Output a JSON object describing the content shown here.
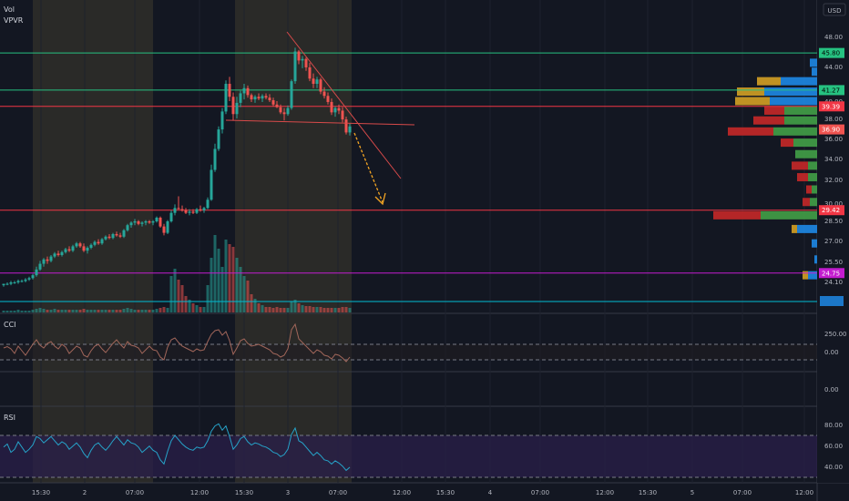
{
  "colors": {
    "background": "#131722",
    "session_shade": "#2a2a28",
    "up": "#26a69a",
    "down": "#ef5350",
    "grid": "#1e222d",
    "axis_text": "#b2b5be",
    "panel_border": "#363a45",
    "level_green": "#26c281",
    "level_red": "#f23645",
    "level_magenta": "#c31ccf",
    "level_cyan": "#00bcd4",
    "vp_up": "#43a047",
    "vp_down": "#c62828",
    "vp_poc_up": "#1e88e5",
    "vp_poc_down": "#d4a024",
    "cci_line": "#a1665a",
    "rsi_line": "#26a3c9",
    "rsi_band": "#2a1f4a",
    "arrow": "#f5a623",
    "trend_line": "#d84a4a"
  },
  "header": {
    "vol_label": "Vol",
    "vpvr_label": "VPVR",
    "currency": "USD"
  },
  "price_axis": {
    "ticks": [
      "48.00",
      "44.00",
      "40.00",
      "38.00",
      "36.00",
      "34.00",
      "32.00",
      "30.00",
      "28.50",
      "27.00",
      "25.50",
      "24.10"
    ],
    "badges": [
      {
        "label": "45.80",
        "value": 45.8,
        "color": "#26c281",
        "text": "#000000"
      },
      {
        "label": "41.27",
        "value": 41.27,
        "color": "#26c281",
        "text": "#000000"
      },
      {
        "label": "39.39",
        "value": 39.39,
        "color": "#f23645",
        "text": "#ffffff"
      },
      {
        "label": "36.90",
        "value": 36.9,
        "color": "#ef5350",
        "text": "#ffffff"
      },
      {
        "label": "29.42",
        "value": 29.42,
        "color": "#f23645",
        "text": "#ffffff"
      },
      {
        "label": "24.75",
        "value": 24.75,
        "color": "#c31ccf",
        "text": "#ffffff"
      }
    ]
  },
  "levels": [
    {
      "name": "resistance-45-80",
      "value": 45.8,
      "color": "#26c281"
    },
    {
      "name": "resistance-41-27",
      "value": 41.27,
      "color": "#26c281"
    },
    {
      "name": "level-39-39",
      "value": 39.39,
      "color": "#f23645"
    },
    {
      "name": "support-29-42",
      "value": 29.42,
      "color": "#f23645"
    },
    {
      "name": "support-24-75",
      "value": 24.75,
      "color": "#c31ccf"
    }
  ],
  "cci": {
    "label": "CCI",
    "ticks": [
      "250.00",
      "0.00"
    ],
    "lower_tick": "0.00"
  },
  "rsi": {
    "label": "RSI",
    "ticks": [
      "80.00",
      "60.00",
      "40.00"
    ]
  },
  "time_axis": {
    "labels": [
      "15:30",
      "2",
      "07:00",
      "12:00",
      "15:30",
      "3",
      "07:00",
      "12:00",
      "15:30",
      "4",
      "07:00",
      "12:00",
      "15:30",
      "5",
      "07:00",
      "12:00"
    ]
  },
  "chart_data": {
    "type": "candlestick",
    "currency": "USD",
    "price_range": [
      23.5,
      50
    ],
    "candles": [
      [
        23.9,
        24.0,
        23.8,
        24.0
      ],
      [
        24.0,
        24.1,
        23.9,
        24.0
      ],
      [
        24.0,
        24.2,
        23.9,
        24.1
      ],
      [
        24.1,
        24.2,
        24.0,
        24.1
      ],
      [
        24.1,
        24.3,
        24.0,
        24.2
      ],
      [
        24.2,
        24.3,
        24.1,
        24.2
      ],
      [
        24.2,
        24.4,
        24.1,
        24.3
      ],
      [
        24.3,
        24.5,
        24.2,
        24.4
      ],
      [
        24.4,
        24.7,
        24.3,
        24.6
      ],
      [
        24.6,
        25.2,
        24.5,
        25.0
      ],
      [
        25.0,
        25.6,
        24.9,
        25.4
      ],
      [
        25.4,
        25.8,
        25.2,
        25.7
      ],
      [
        25.7,
        25.9,
        25.4,
        25.6
      ],
      [
        25.6,
        26.0,
        25.5,
        25.9
      ],
      [
        25.9,
        26.2,
        25.8,
        26.1
      ],
      [
        26.1,
        26.3,
        25.9,
        26.0
      ],
      [
        26.0,
        26.3,
        25.9,
        26.2
      ],
      [
        26.2,
        26.5,
        26.1,
        26.4
      ],
      [
        26.4,
        26.6,
        26.2,
        26.3
      ],
      [
        26.3,
        26.7,
        26.2,
        26.6
      ],
      [
        26.6,
        26.9,
        26.5,
        26.8
      ],
      [
        26.8,
        26.9,
        26.5,
        26.6
      ],
      [
        26.6,
        26.8,
        26.2,
        26.3
      ],
      [
        26.3,
        26.6,
        26.1,
        26.5
      ],
      [
        26.5,
        26.8,
        26.4,
        26.7
      ],
      [
        26.7,
        27.0,
        26.6,
        26.9
      ],
      [
        26.9,
        27.1,
        26.7,
        26.8
      ],
      [
        26.8,
        27.2,
        26.7,
        27.1
      ],
      [
        27.1,
        27.4,
        27.0,
        27.3
      ],
      [
        27.3,
        27.5,
        27.1,
        27.2
      ],
      [
        27.2,
        27.6,
        27.1,
        27.5
      ],
      [
        27.5,
        27.7,
        27.3,
        27.4
      ],
      [
        27.4,
        27.6,
        27.2,
        27.3
      ],
      [
        27.3,
        27.9,
        27.2,
        27.8
      ],
      [
        27.8,
        28.3,
        27.7,
        28.2
      ],
      [
        28.2,
        28.5,
        28.0,
        28.4
      ],
      [
        28.4,
        28.7,
        28.2,
        28.5
      ],
      [
        28.5,
        28.6,
        28.2,
        28.3
      ],
      [
        28.3,
        28.5,
        28.1,
        28.4
      ],
      [
        28.4,
        28.6,
        28.2,
        28.5
      ],
      [
        28.5,
        28.6,
        28.3,
        28.4
      ],
      [
        28.4,
        28.6,
        28.2,
        28.5
      ],
      [
        28.5,
        28.9,
        28.4,
        28.8
      ],
      [
        28.8,
        28.9,
        28.0,
        28.1
      ],
      [
        28.1,
        28.3,
        27.4,
        27.6
      ],
      [
        27.6,
        28.6,
        27.5,
        28.5
      ],
      [
        28.5,
        29.4,
        28.4,
        29.2
      ],
      [
        29.2,
        29.9,
        29.0,
        29.6
      ],
      [
        29.6,
        30.6,
        29.5,
        29.5
      ],
      [
        29.5,
        29.8,
        29.3,
        29.4
      ],
      [
        29.4,
        29.6,
        29.1,
        29.2
      ],
      [
        29.2,
        29.5,
        29.0,
        29.3
      ],
      [
        29.3,
        29.5,
        29.1,
        29.2
      ],
      [
        29.2,
        29.6,
        29.1,
        29.5
      ],
      [
        29.5,
        29.8,
        29.3,
        29.4
      ],
      [
        29.4,
        29.7,
        29.2,
        29.6
      ],
      [
        29.6,
        30.5,
        29.5,
        30.3
      ],
      [
        30.3,
        33.5,
        30.2,
        33.0
      ],
      [
        33.0,
        35.5,
        32.8,
        35.0
      ],
      [
        35.0,
        37.2,
        34.8,
        36.9
      ],
      [
        36.9,
        39.2,
        36.5,
        38.8
      ],
      [
        38.8,
        42.4,
        38.5,
        42.0
      ],
      [
        42.0,
        42.8,
        40.0,
        40.5
      ],
      [
        40.5,
        41.0,
        37.8,
        38.5
      ],
      [
        38.5,
        40.5,
        38.0,
        39.8
      ],
      [
        39.8,
        41.2,
        39.3,
        40.9
      ],
      [
        40.9,
        42.0,
        40.2,
        41.5
      ],
      [
        41.5,
        41.8,
        40.4,
        40.7
      ],
      [
        40.7,
        40.9,
        39.9,
        40.2
      ],
      [
        40.2,
        40.7,
        39.8,
        40.5
      ],
      [
        40.5,
        40.9,
        40.1,
        40.3
      ],
      [
        40.3,
        40.8,
        39.9,
        40.6
      ],
      [
        40.6,
        40.9,
        40.2,
        40.4
      ],
      [
        40.4,
        40.8,
        39.9,
        40.1
      ],
      [
        40.1,
        40.4,
        39.4,
        39.6
      ],
      [
        39.6,
        40.0,
        39.2,
        39.3
      ],
      [
        39.3,
        39.6,
        38.5,
        38.7
      ],
      [
        38.7,
        39.2,
        37.8,
        38.5
      ],
      [
        38.5,
        39.5,
        38.3,
        39.2
      ],
      [
        39.2,
        42.5,
        39.0,
        42.3
      ],
      [
        42.3,
        46.5,
        42.0,
        46.0
      ],
      [
        46.0,
        46.2,
        44.3,
        44.8
      ],
      [
        44.8,
        45.4,
        43.8,
        45.0
      ],
      [
        45.0,
        45.2,
        43.5,
        43.9
      ],
      [
        43.9,
        44.5,
        42.3,
        42.6
      ],
      [
        42.6,
        43.2,
        41.5,
        42.0
      ],
      [
        42.0,
        42.8,
        41.5,
        42.5
      ],
      [
        42.5,
        42.7,
        40.8,
        41.1
      ],
      [
        41.1,
        41.6,
        40.3,
        40.6
      ],
      [
        40.6,
        41.0,
        39.6,
        39.9
      ],
      [
        39.9,
        40.3,
        38.4,
        38.7
      ],
      [
        38.7,
        39.4,
        38.2,
        39.2
      ],
      [
        39.2,
        39.6,
        38.5,
        38.9
      ],
      [
        38.9,
        39.3,
        37.6,
        37.9
      ],
      [
        37.9,
        38.2,
        36.4,
        36.6
      ],
      [
        36.6,
        37.5,
        36.3,
        37.2
      ]
    ],
    "volume": [
      2,
      2,
      2,
      2,
      3,
      2,
      2,
      2,
      3,
      4,
      5,
      4,
      3,
      3,
      4,
      3,
      3,
      3,
      3,
      3,
      3,
      3,
      4,
      3,
      3,
      3,
      3,
      3,
      3,
      3,
      3,
      3,
      3,
      4,
      5,
      4,
      3,
      3,
      3,
      3,
      3,
      3,
      4,
      5,
      6,
      5,
      40,
      48,
      36,
      30,
      18,
      14,
      10,
      8,
      6,
      6,
      30,
      60,
      85,
      70,
      50,
      80,
      75,
      72,
      60,
      50,
      40,
      35,
      20,
      15,
      10,
      8,
      6,
      6,
      5,
      6,
      5,
      5,
      5,
      12,
      14,
      10,
      8,
      7,
      7,
      6,
      6,
      6,
      5,
      5,
      5,
      5,
      5,
      6,
      6,
      5
    ],
    "volume_profile": [
      {
        "price": 44.5,
        "up": 8,
        "down": 0,
        "poc": true
      },
      {
        "price": 43.4,
        "up": 6,
        "down": 0,
        "poc": true
      },
      {
        "price": 42.3,
        "up": 40,
        "down": 26,
        "poc": true
      },
      {
        "price": 41.1,
        "up": 58,
        "down": 30,
        "poc": true
      },
      {
        "price": 40.0,
        "up": 52,
        "down": 38,
        "poc": true
      },
      {
        "price": 38.9,
        "up": 36,
        "down": 22,
        "poc": false
      },
      {
        "price": 37.8,
        "up": 36,
        "down": 34,
        "poc": false
      },
      {
        "price": 36.7,
        "up": 48,
        "down": 50,
        "poc": false
      },
      {
        "price": 35.6,
        "up": 26,
        "down": 14,
        "poc": false
      },
      {
        "price": 34.5,
        "up": 24,
        "down": 0,
        "poc": false
      },
      {
        "price": 33.4,
        "up": 10,
        "down": 18,
        "poc": false
      },
      {
        "price": 32.3,
        "up": 10,
        "down": 12,
        "poc": false
      },
      {
        "price": 31.2,
        "up": 6,
        "down": 6,
        "poc": false
      },
      {
        "price": 30.1,
        "up": 8,
        "down": 8,
        "poc": false
      },
      {
        "price": 29.0,
        "up": 62,
        "down": 52,
        "poc": false
      },
      {
        "price": 27.9,
        "up": 22,
        "down": 6,
        "poc": true
      },
      {
        "price": 26.8,
        "up": 6,
        "down": 0,
        "poc": true
      },
      {
        "price": 25.7,
        "up": 3,
        "down": 0,
        "poc": true
      },
      {
        "price": 24.6,
        "up": 10,
        "down": 6,
        "poc": true
      }
    ],
    "cci": [
      40,
      55,
      30,
      -20,
      60,
      10,
      -40,
      20,
      80,
      130,
      70,
      40,
      90,
      110,
      60,
      30,
      80,
      50,
      -20,
      20,
      60,
      40,
      -40,
      -60,
      10,
      60,
      80,
      30,
      -10,
      40,
      90,
      130,
      80,
      40,
      110,
      70,
      60,
      40,
      -20,
      20,
      60,
      20,
      10,
      -60,
      -90,
      50,
      130,
      150,
      100,
      60,
      40,
      20,
      0,
      30,
      10,
      20,
      110,
      190,
      230,
      240,
      180,
      220,
      120,
      -30,
      40,
      120,
      140,
      90,
      60,
      70,
      80,
      60,
      40,
      20,
      -20,
      -30,
      -60,
      -40,
      30,
      240,
      300,
      140,
      100,
      60,
      20,
      -20,
      20,
      0,
      -40,
      -50,
      -80,
      -30,
      -40,
      -70,
      -110,
      -60
    ],
    "cci_bands": [
      100,
      -100
    ],
    "cci_range": [
      -220,
      360
    ],
    "rsi": [
      60,
      63,
      55,
      58,
      65,
      60,
      55,
      58,
      62,
      70,
      68,
      64,
      67,
      70,
      66,
      62,
      65,
      63,
      58,
      61,
      64,
      60,
      54,
      50,
      57,
      62,
      64,
      60,
      57,
      61,
      66,
      70,
      66,
      62,
      67,
      64,
      63,
      60,
      55,
      58,
      61,
      57,
      55,
      48,
      44,
      56,
      66,
      71,
      67,
      63,
      60,
      58,
      57,
      60,
      59,
      60,
      66,
      75,
      80,
      82,
      76,
      80,
      70,
      58,
      62,
      68,
      70,
      65,
      62,
      64,
      63,
      61,
      60,
      58,
      55,
      54,
      51,
      53,
      58,
      72,
      78,
      66,
      64,
      60,
      56,
      52,
      55,
      52,
      48,
      47,
      44,
      47,
      45,
      42,
      38,
      41
    ],
    "rsi_bands": [
      70,
      30
    ],
    "rsi_range": [
      28,
      90
    ]
  }
}
